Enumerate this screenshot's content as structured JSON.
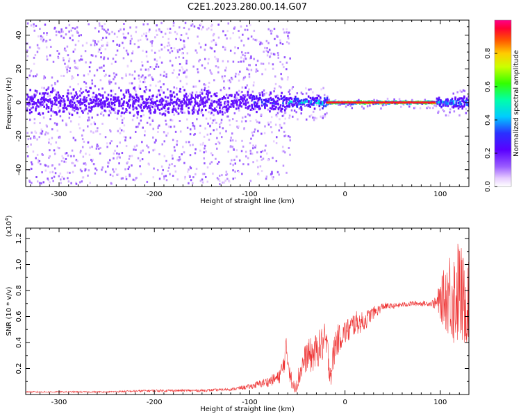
{
  "figure_title": "C2E1.2023.280.00.14.G07",
  "colors": {
    "snr_line": "#ee3333",
    "background": "#ffffff",
    "axis": "#000000"
  },
  "chart_data": [
    {
      "type": "heatmap",
      "title": "C2E1.2023.280.00.14.G07",
      "xlabel": "Height of straight line (km)",
      "ylabel": "Frequency (Hz)",
      "xlim": [
        -335,
        130
      ],
      "ylim": [
        -50,
        49
      ],
      "x_ticks": [
        -300,
        -200,
        -100,
        0,
        100
      ],
      "y_ticks": [
        -40,
        -20,
        0,
        20,
        40
      ],
      "grid": false,
      "colorscale": "rainbow (white-violet-blue-cyan-green-yellow-orange-red-magenta)",
      "colorbar": {
        "label": "Normalized spectral amplitude",
        "range": [
          0,
          1
        ],
        "ticks": [
          0.0,
          0.2,
          0.4,
          0.6,
          0.8
        ]
      },
      "description_of_values": "Energy concentrated near 0 Hz; broad scatter (±48 Hz) for heights below -100 km; narrowing band with higher amplitude above about -60 km; strong narrow red line near 0 Hz between -20 km and 95 km",
      "segments": [
        {
          "x_range": [
            -335,
            -100
          ],
          "y_spread_hz": 48,
          "core_halfwidth_hz": 10,
          "peak_amplitude": 0.25
        },
        {
          "x_range": [
            -100,
            -60
          ],
          "y_spread_hz": 45,
          "core_halfwidth_hz": 8,
          "peak_amplitude": 0.4
        },
        {
          "x_range": [
            -60,
            -20
          ],
          "y_spread_hz": 10,
          "core_halfwidth_hz": 5,
          "peak_amplitude": 0.55
        },
        {
          "x_range": [
            -20,
            95
          ],
          "y_spread_hz": 3,
          "core_halfwidth_hz": 1,
          "peak_amplitude": 1.0
        },
        {
          "x_range": [
            95,
            130
          ],
          "y_spread_hz": 8,
          "core_halfwidth_hz": 4,
          "peak_amplitude": 0.5
        }
      ]
    },
    {
      "type": "line",
      "title": "",
      "xlabel": "Height of straight line (km)",
      "ylabel": "SNR (10 * v/v)",
      "y_multiplier_label": "(x10",
      "y_multiplier_exp": "4",
      "y_multiplier_close": ")",
      "xlim": [
        -335,
        130
      ],
      "ylim": [
        0,
        1.28
      ],
      "x_ticks": [
        -300,
        -200,
        -100,
        0,
        100
      ],
      "y_ticks": [
        0.2,
        0.4,
        0.6,
        0.8,
        1.0,
        1.2
      ],
      "grid": false,
      "series": [
        {
          "x": [
            -335,
            -300,
            -250,
            -200,
            -150,
            -120,
            -100,
            -80,
            -70,
            -65,
            -62,
            -58,
            -55,
            -50,
            -45,
            -40,
            -35,
            -30,
            -25,
            -20,
            -15,
            -10,
            -5,
            0,
            5,
            10,
            15,
            20,
            25,
            30,
            35,
            40,
            50,
            60,
            70,
            80,
            90,
            95,
            100,
            105,
            110,
            115,
            120,
            125,
            130
          ],
          "y": [
            0.02,
            0.02,
            0.02,
            0.03,
            0.03,
            0.04,
            0.06,
            0.1,
            0.13,
            0.2,
            0.35,
            0.2,
            0.05,
            0.1,
            0.22,
            0.3,
            0.3,
            0.33,
            0.38,
            0.4,
            0.15,
            0.4,
            0.44,
            0.48,
            0.5,
            0.55,
            0.55,
            0.56,
            0.6,
            0.63,
            0.65,
            0.68,
            0.68,
            0.69,
            0.7,
            0.7,
            0.7,
            0.7,
            0.72,
            0.75,
            0.78,
            0.75,
            0.8,
            0.7,
            0.72
          ],
          "spread": [
            0.005,
            0.005,
            0.005,
            0.01,
            0.01,
            0.01,
            0.02,
            0.04,
            0.05,
            0.1,
            0.1,
            0.1,
            0.04,
            0.08,
            0.1,
            0.12,
            0.14,
            0.14,
            0.14,
            0.16,
            0.1,
            0.14,
            0.1,
            0.1,
            0.1,
            0.1,
            0.08,
            0.08,
            0.06,
            0.05,
            0.04,
            0.03,
            0.02,
            0.02,
            0.02,
            0.02,
            0.02,
            0.05,
            0.15,
            0.25,
            0.35,
            0.4,
            0.42,
            0.35,
            0.3
          ]
        }
      ]
    }
  ]
}
